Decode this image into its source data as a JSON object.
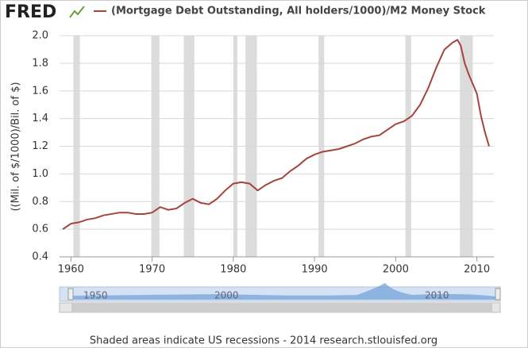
{
  "chart_data": {
    "type": "line",
    "logo": "FRED",
    "ylabel": "((Mil. of $/1000)/Bil. of $)",
    "footer": "Shaded areas indicate US recessions - 2014 research.stlouisfed.org",
    "series": [
      {
        "name": "(Mortgage Debt Outstanding, All holders/1000)/M2 Money Stock",
        "color": "#a5433d",
        "x": [
          1959,
          1960,
          1961,
          1962,
          1963,
          1964,
          1965,
          1966,
          1967,
          1968,
          1969,
          1970,
          1971,
          1972,
          1973,
          1974,
          1975,
          1976,
          1977,
          1978,
          1979,
          1980,
          1981,
          1982,
          1983,
          1984,
          1985,
          1986,
          1987,
          1988,
          1989,
          1990,
          1991,
          1992,
          1993,
          1994,
          1995,
          1996,
          1997,
          1998,
          1999,
          2000,
          2001,
          2002,
          2003,
          2004,
          2005,
          2006,
          2007,
          2007.6,
          2008,
          2008.5,
          2009,
          2010,
          2010.5,
          2011,
          2011.5
        ],
        "values": [
          0.6,
          0.64,
          0.65,
          0.67,
          0.68,
          0.7,
          0.71,
          0.72,
          0.72,
          0.71,
          0.71,
          0.72,
          0.76,
          0.74,
          0.75,
          0.79,
          0.82,
          0.79,
          0.78,
          0.82,
          0.88,
          0.93,
          0.94,
          0.93,
          0.88,
          0.92,
          0.95,
          0.97,
          1.02,
          1.06,
          1.11,
          1.14,
          1.16,
          1.17,
          1.18,
          1.2,
          1.22,
          1.25,
          1.27,
          1.28,
          1.32,
          1.36,
          1.38,
          1.42,
          1.5,
          1.62,
          1.77,
          1.9,
          1.95,
          1.97,
          1.93,
          1.8,
          1.72,
          1.58,
          1.42,
          1.3,
          1.2
        ]
      }
    ],
    "recessions": [
      [
        1960.3,
        1961.1
      ],
      [
        1969.9,
        1970.9
      ],
      [
        1973.9,
        1975.2
      ],
      [
        1980.0,
        1980.5
      ],
      [
        1981.5,
        1982.9
      ],
      [
        1990.5,
        1991.2
      ],
      [
        2001.2,
        2001.9
      ],
      [
        2007.9,
        2009.5
      ]
    ],
    "recession_color": "#dcdcdc",
    "xlim": [
      1958.6,
      2011.6
    ],
    "xticks": [
      1960,
      1970,
      1980,
      1990,
      2000,
      2010
    ],
    "ylim": [
      0.4,
      2
    ],
    "yticks": [
      0.4,
      0.6,
      0.8,
      {
        "value": 1,
        "label": "1.0"
      },
      1.2,
      1.4,
      1.6,
      1.8,
      {
        "value": 2,
        "label": "2.0"
      }
    ],
    "grid": true,
    "navigator_labels": [
      "1950",
      "2000",
      "2010"
    ]
  }
}
